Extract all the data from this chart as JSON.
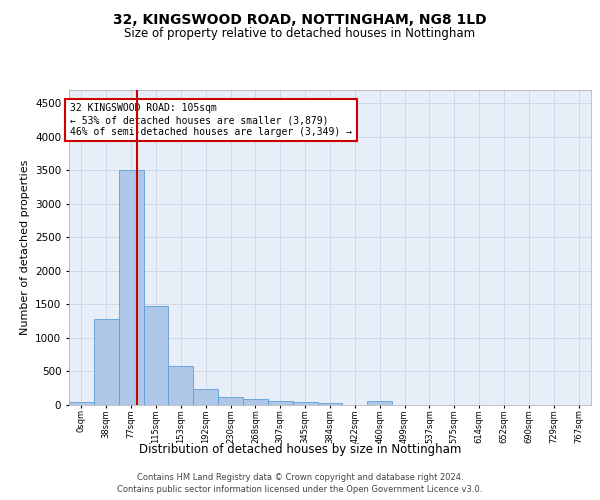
{
  "title": "32, KINGSWOOD ROAD, NOTTINGHAM, NG8 1LD",
  "subtitle": "Size of property relative to detached houses in Nottingham",
  "xlabel": "Distribution of detached houses by size in Nottingham",
  "ylabel": "Number of detached properties",
  "bin_labels": [
    "0sqm",
    "38sqm",
    "77sqm",
    "115sqm",
    "153sqm",
    "192sqm",
    "230sqm",
    "268sqm",
    "307sqm",
    "345sqm",
    "384sqm",
    "422sqm",
    "460sqm",
    "499sqm",
    "537sqm",
    "575sqm",
    "614sqm",
    "652sqm",
    "690sqm",
    "729sqm",
    "767sqm"
  ],
  "bar_values": [
    40,
    1280,
    3510,
    1480,
    575,
    240,
    115,
    85,
    55,
    45,
    30,
    0,
    55,
    0,
    0,
    0,
    0,
    0,
    0,
    0,
    0
  ],
  "bar_color": "#aec6e8",
  "bar_edge_color": "#5a9fd4",
  "grid_color": "#d0d8e8",
  "bg_color": "#e8eef8",
  "vline_color": "#cc0000",
  "annotation_text": "32 KINGSWOOD ROAD: 105sqm\n← 53% of detached houses are smaller (3,879)\n46% of semi-detached houses are larger (3,349) →",
  "annotation_box_color": "#cc0000",
  "ylim": [
    0,
    4700
  ],
  "yticks": [
    0,
    500,
    1000,
    1500,
    2000,
    2500,
    3000,
    3500,
    4000,
    4500
  ],
  "footer_line1": "Contains HM Land Registry data © Crown copyright and database right 2024.",
  "footer_line2": "Contains public sector information licensed under the Open Government Licence v3.0."
}
